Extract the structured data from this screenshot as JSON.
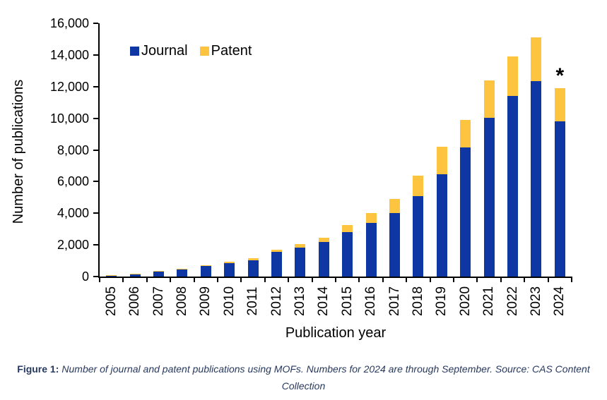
{
  "figure": {
    "caption_prefix": "Figure 1:",
    "caption_text": "Number of journal and patent publications using MOFs. Numbers for 2024 are through September. Source: CAS Content Collection"
  },
  "chart_data": {
    "type": "bar",
    "stacked": true,
    "title": "",
    "xlabel": "Publication year",
    "ylabel": "Number of publications",
    "categories": [
      "2005",
      "2006",
      "2007",
      "2008",
      "2009",
      "2010",
      "2011",
      "2012",
      "2013",
      "2014",
      "2015",
      "2016",
      "2017",
      "2018",
      "2019",
      "2020",
      "2021",
      "2022",
      "2023",
      "2024"
    ],
    "series": [
      {
        "name": "Journal",
        "color": "#0f37a4",
        "values": [
          90,
          180,
          310,
          470,
          650,
          830,
          1020,
          1550,
          1850,
          2200,
          2800,
          3400,
          4000,
          5100,
          6480,
          8140,
          10040,
          11410,
          12340,
          9820
        ]
      },
      {
        "name": "Patent",
        "color": "#fdc53f",
        "values": [
          10,
          20,
          25,
          30,
          60,
          110,
          130,
          160,
          220,
          250,
          450,
          620,
          890,
          1270,
          1730,
          1760,
          2350,
          2520,
          2780,
          2070
        ]
      }
    ],
    "ylim": [
      0,
      16000
    ],
    "ytick_step": 2000,
    "ytick_labels": [
      "0",
      "2,000",
      "4,000",
      "6,000",
      "8,000",
      "10,000",
      "12,000",
      "14,000",
      "16,000"
    ],
    "legend_position": "top-inside",
    "grid": false,
    "annotation": {
      "text": "*",
      "category": "2024"
    }
  },
  "colors": {
    "journal": "#0f37a4",
    "patent": "#fdc53f",
    "axis": "#000000",
    "caption": "#27395e",
    "background": "#ffffff"
  }
}
